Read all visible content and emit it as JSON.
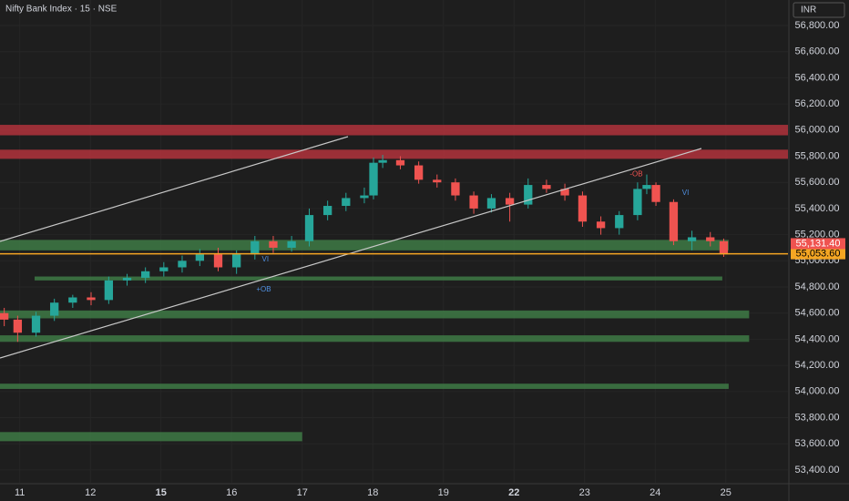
{
  "chart_data": {
    "type": "candlestick",
    "title": "Nifty Bank Index · 15 · NSE",
    "currency": "INR",
    "up_color": "#26a69a",
    "down_color": "#ef5350",
    "xlim": [
      -0.28,
      10.88
    ],
    "xticks": [
      {
        "value": 0,
        "label": "11"
      },
      {
        "value": 1,
        "label": "12"
      },
      {
        "value": 2,
        "label": "15"
      },
      {
        "value": 3,
        "label": "16"
      },
      {
        "value": 4,
        "label": "17"
      },
      {
        "value": 5,
        "label": "18"
      },
      {
        "value": 6,
        "label": "19"
      },
      {
        "value": 7,
        "label": "22"
      },
      {
        "value": 8,
        "label": "23"
      },
      {
        "value": 9,
        "label": "24"
      },
      {
        "value": 10,
        "label": "25"
      }
    ],
    "ylim": [
      53302,
      56995
    ],
    "yticks": [
      {
        "value": 53400,
        "label": "53,400.00"
      },
      {
        "value": 53600,
        "label": "53,600.00"
      },
      {
        "value": 53800,
        "label": "53,800.00"
      },
      {
        "value": 54000,
        "label": "54,000.00"
      },
      {
        "value": 54200,
        "label": "54,200.00"
      },
      {
        "value": 54400,
        "label": "54,400.00"
      },
      {
        "value": 54600,
        "label": "54,600.00"
      },
      {
        "value": 54800,
        "label": "54,800.00"
      },
      {
        "value": 55000,
        "label": "55,000.00"
      },
      {
        "value": 55200,
        "label": "55,200.00"
      },
      {
        "value": 55400,
        "label": "55,400.00"
      },
      {
        "value": 55600,
        "label": "55,600.00"
      },
      {
        "value": 55800,
        "label": "55,800.00"
      },
      {
        "value": 56000,
        "label": "56,000.00"
      },
      {
        "value": 56200,
        "label": "56,200.00"
      },
      {
        "value": 56400,
        "label": "56,400.00"
      },
      {
        "value": 56600,
        "label": "56,600.00"
      },
      {
        "value": 56800,
        "label": "56,800.00"
      }
    ],
    "x": [
      -0.22,
      -0.03,
      0.23,
      0.49,
      0.75,
      1.01,
      1.26,
      1.52,
      1.78,
      2.04,
      2.3,
      2.55,
      2.81,
      3.07,
      3.33,
      3.59,
      3.85,
      4.1,
      4.36,
      4.62,
      4.88,
      5.01,
      5.14,
      5.39,
      5.65,
      5.91,
      6.17,
      6.43,
      6.68,
      6.94,
      7.2,
      7.46,
      7.72,
      7.97,
      8.23,
      8.49,
      8.75,
      8.88,
      9.01,
      9.26,
      9.52,
      9.78,
      9.97
    ],
    "open": [
      54600,
      54550,
      54450,
      54580,
      54680,
      54720,
      54700,
      54850,
      54870,
      54920,
      54950,
      55000,
      55050,
      54950,
      55050,
      55150,
      55100,
      55150,
      55350,
      55420,
      55480,
      55500,
      55750,
      55770,
      55730,
      55620,
      55600,
      55500,
      55400,
      55480,
      55430,
      55580,
      55550,
      55500,
      55300,
      55250,
      55350,
      55550,
      55580,
      55450,
      55150,
      55180,
      55150
    ],
    "high": [
      54640,
      54580,
      54610,
      54710,
      54740,
      54760,
      54880,
      54900,
      54950,
      54990,
      55040,
      55090,
      55100,
      55080,
      55190,
      55190,
      55190,
      55400,
      55460,
      55520,
      55560,
      55790,
      55810,
      55800,
      55760,
      55660,
      55630,
      55530,
      55510,
      55520,
      55630,
      55620,
      55590,
      55530,
      55340,
      55380,
      55600,
      55660,
      55600,
      55470,
      55230,
      55220,
      55170
    ],
    "low": [
      54500,
      54380,
      54420,
      54540,
      54640,
      54660,
      54670,
      54810,
      54830,
      54880,
      54910,
      54960,
      54920,
      54900,
      55010,
      55060,
      55070,
      55110,
      55310,
      55380,
      55440,
      55470,
      55710,
      55700,
      55590,
      55560,
      55460,
      55360,
      55370,
      55300,
      55400,
      55520,
      55460,
      55260,
      55200,
      55200,
      55310,
      55510,
      55420,
      55120,
      55080,
      55110,
      55030
    ],
    "close": [
      54550,
      54450,
      54580,
      54680,
      54720,
      54700,
      54850,
      54870,
      54920,
      54950,
      55000,
      55050,
      54950,
      55050,
      55150,
      55100,
      55150,
      55350,
      55420,
      55480,
      55500,
      55750,
      55770,
      55730,
      55620,
      55600,
      55500,
      55400,
      55480,
      55430,
      55580,
      55550,
      55500,
      55300,
      55250,
      55350,
      55550,
      55580,
      55450,
      55150,
      55180,
      55150,
      55050
    ],
    "zones": [
      {
        "from": -0.28,
        "to": 10.88,
        "low": 55960,
        "high": 56040,
        "color": "#b2323c"
      },
      {
        "from": -0.28,
        "to": 10.88,
        "low": 55780,
        "high": 55850,
        "color": "#b2323c"
      },
      {
        "from": -0.28,
        "to": 10.04,
        "low": 55080,
        "high": 55160,
        "color": "#3e7a45"
      },
      {
        "from": 0.21,
        "to": 9.95,
        "low": 54850,
        "high": 54880,
        "color": "#3e7a45"
      },
      {
        "from": -0.28,
        "to": 10.33,
        "low": 54560,
        "high": 54620,
        "color": "#3e7a45"
      },
      {
        "from": -0.28,
        "to": 10.33,
        "low": 54380,
        "high": 54430,
        "color": "#3e7a45"
      },
      {
        "from": -0.28,
        "to": 10.04,
        "low": 54020,
        "high": 54060,
        "color": "#3e7a45"
      },
      {
        "from": -0.28,
        "to": 4.0,
        "low": 53620,
        "high": 53690,
        "color": "#3e7a45"
      }
    ],
    "last_price": 55053.6,
    "last_price_label": "55,053.60",
    "marker_price": 55131.4,
    "marker_price_label": "55,131.40",
    "annotations": [
      {
        "text": "-OB",
        "x": 8.64,
        "y": 55660
      },
      {
        "text": "VI",
        "x": 9.38,
        "y": 55520
      },
      {
        "text": "VI",
        "x": 3.43,
        "y": 55010
      },
      {
        "text": "+OB",
        "x": 3.35,
        "y": 54780
      }
    ]
  }
}
